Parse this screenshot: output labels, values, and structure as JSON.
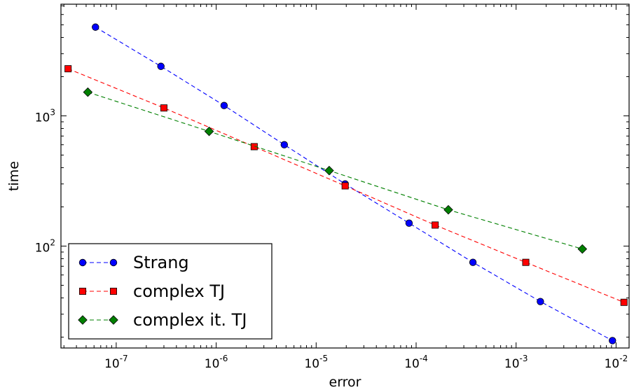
{
  "chart_data": {
    "type": "line",
    "xlabel": "error",
    "ylabel": "time",
    "xscale": "log",
    "yscale": "log",
    "xlim": [
      2.8e-08,
      0.0135
    ],
    "ylim": [
      16.5,
      7200
    ],
    "grid": false,
    "legend_position": "bottom-left",
    "x_ticks": [
      {
        "base": "10",
        "exp": "-7",
        "value": 1e-07
      },
      {
        "base": "10",
        "exp": "-6",
        "value": 1e-06
      },
      {
        "base": "10",
        "exp": "-5",
        "value": 1e-05
      },
      {
        "base": "10",
        "exp": "-4",
        "value": 0.0001
      },
      {
        "base": "10",
        "exp": "-3",
        "value": 0.001
      },
      {
        "base": "10",
        "exp": "-2",
        "value": 0.01
      }
    ],
    "y_ticks": [
      {
        "base": "10",
        "exp": "2",
        "value": 100
      },
      {
        "base": "10",
        "exp": "3",
        "value": 1000
      }
    ],
    "series": [
      {
        "name": "Strang",
        "color": "#0000ff",
        "marker": "circle",
        "x": [
          6.2e-08,
          2.8e-07,
          1.2e-06,
          4.8e-06,
          1.95e-05,
          8.5e-05,
          0.00037,
          0.00175,
          0.0092
        ],
        "y": [
          4800,
          2400,
          1200,
          600,
          300,
          150,
          75,
          37.5,
          18.8
        ]
      },
      {
        "name": "complex TJ",
        "color": "#ff0000",
        "marker": "square",
        "x": [
          3.3e-08,
          3e-07,
          2.4e-06,
          1.95e-05,
          0.000155,
          0.00125,
          0.012
        ],
        "y": [
          2300,
          1150,
          580,
          290,
          145,
          75,
          37
        ]
      },
      {
        "name": "complex it. TJ",
        "color": "#008000",
        "marker": "diamond",
        "x": [
          5.2e-08,
          8.5e-07,
          1.35e-05,
          0.00021,
          0.0046
        ],
        "y": [
          1520,
          760,
          380,
          190,
          95
        ]
      }
    ]
  }
}
